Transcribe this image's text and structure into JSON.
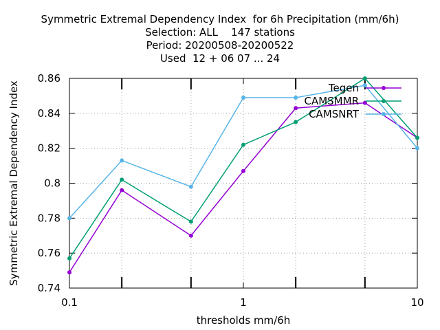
{
  "chart_data": {
    "type": "line",
    "title_lines": [
      "Symmetric Extremal Dependency Index  for 6h Precipitation (mm/6h)",
      "Selection: ALL    147 stations",
      "Period: 20200508-20200522",
      "Used  12 + 06 07 ... 24"
    ],
    "xlabel": "thresholds mm/6h",
    "ylabel": "Symmetric Extremal Dependency Index",
    "x_scale": "log",
    "xlim": [
      0.1,
      10
    ],
    "ylim": [
      0.74,
      0.86
    ],
    "x_ticks": [
      0.1,
      1,
      10
    ],
    "x_tick_labels": [
      "0.1",
      "1",
      "10"
    ],
    "x_minor_ticks": [
      0.2,
      0.5,
      2,
      5
    ],
    "y_ticks": [
      0.74,
      0.76,
      0.78,
      0.8,
      0.82,
      0.84,
      0.86
    ],
    "y_tick_labels": [
      "0.74",
      "0.76",
      "0.78",
      "0.8",
      "0.82",
      "0.84",
      "0.86"
    ],
    "grid": true,
    "legend_position": "top-right",
    "x": [
      0.1,
      0.2,
      0.5,
      1,
      2,
      5,
      10
    ],
    "series": [
      {
        "name": "Tegen",
        "color": "#9400d3",
        "values": [
          0.749,
          0.796,
          0.77,
          0.807,
          0.843,
          0.846,
          0.826
        ]
      },
      {
        "name": "CAMSMMR",
        "color": "#009e73",
        "values": [
          0.757,
          0.802,
          0.778,
          0.822,
          0.835,
          0.86,
          0.826
        ]
      },
      {
        "name": "CAMSNRT",
        "color": "#56b4e9",
        "values": [
          0.78,
          0.813,
          0.798,
          0.849,
          0.849,
          0.856,
          0.82
        ]
      }
    ]
  }
}
